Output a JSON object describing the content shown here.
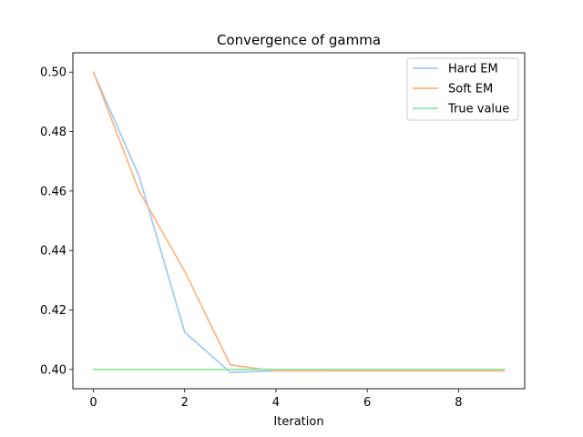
{
  "chart_data": {
    "type": "line",
    "title": "Convergence of gamma",
    "xlabel": "Iteration",
    "ylabel": "",
    "xlim": [
      -0.45,
      9.45
    ],
    "ylim": [
      0.3935,
      0.5065
    ],
    "xticks": [
      0,
      2,
      4,
      6,
      8
    ],
    "yticks": [
      0.4,
      0.42,
      0.44,
      0.46,
      0.48,
      0.5
    ],
    "ytick_labels": [
      "0.40",
      "0.42",
      "0.44",
      "0.46",
      "0.48",
      "0.50"
    ],
    "legend_position": "top-right",
    "series": [
      {
        "name": "Hard EM",
        "color": "#a1c9f4",
        "x": [
          0,
          1,
          2,
          3,
          4,
          5
        ],
        "y": [
          0.5,
          0.465,
          0.4125,
          0.399,
          0.3995,
          0.3995
        ]
      },
      {
        "name": "Soft EM",
        "color": "#ffb482",
        "x": [
          0,
          1,
          2,
          3,
          4,
          5,
          6,
          7,
          8,
          9
        ],
        "y": [
          0.5,
          0.46,
          0.433,
          0.4015,
          0.3995,
          0.3995,
          0.3995,
          0.3995,
          0.3995,
          0.3995
        ]
      },
      {
        "name": "True value",
        "color": "#8de5a1",
        "x": [
          0,
          1,
          2,
          3,
          4,
          5,
          6,
          7,
          8,
          9
        ],
        "y": [
          0.4,
          0.4,
          0.4,
          0.4,
          0.4,
          0.4,
          0.4,
          0.4,
          0.4,
          0.4
        ]
      }
    ]
  }
}
